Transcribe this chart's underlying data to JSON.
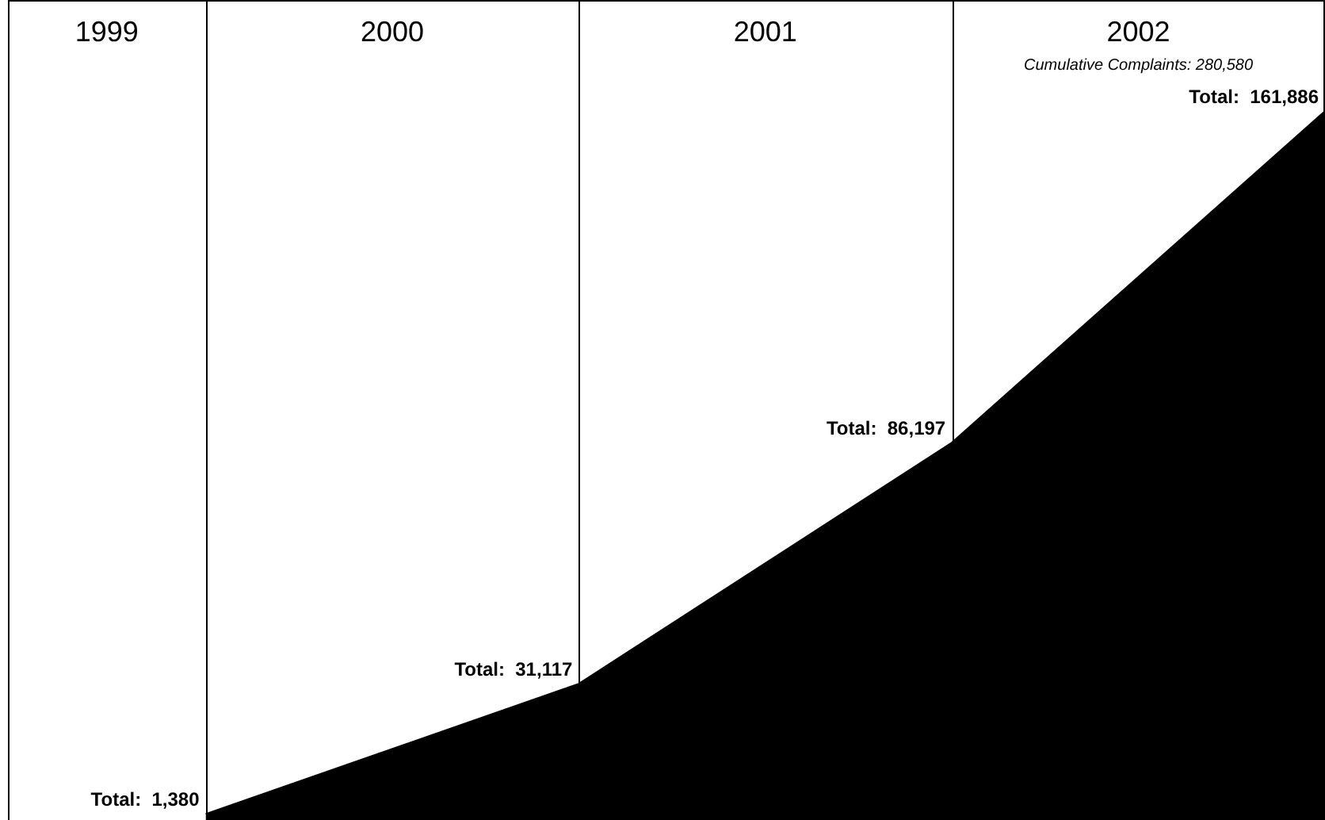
{
  "chart_data": {
    "type": "area",
    "categories": [
      null,
      null,
      null,
      null
    ],
    "series": [
      {
        "color": "#000000",
        "values": [
          1380,
          31117,
          86197,
          161886
        ],
        "value_labels": [
          "Total:  1,380",
          "Total:  31,117",
          "Total:  86,197",
          "Total:  161,886"
        ]
      }
    ],
    "grid": "x",
    "annotations": [
      "1999",
      "2000",
      "2001",
      "2002",
      "Cumulative Complaints: 280,580"
    ]
  }
}
